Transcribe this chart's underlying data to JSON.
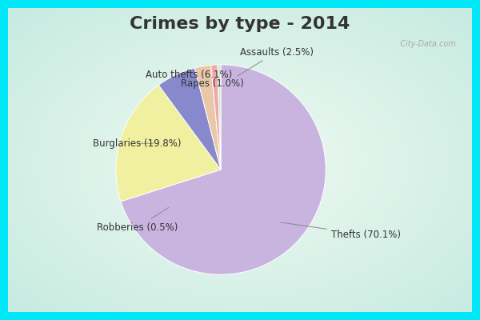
{
  "title": "Crimes by type - 2014",
  "slices": [
    {
      "label": "Thefts (70.1%)",
      "value": 70.1,
      "color": "#c9b4e0"
    },
    {
      "label": "Burglaries (19.8%)",
      "value": 19.8,
      "color": "#f0f0a0"
    },
    {
      "label": "Auto thefts (6.1%)",
      "value": 6.1,
      "color": "#8888cc"
    },
    {
      "label": "Assaults (2.5%)",
      "value": 2.5,
      "color": "#e8c8a8"
    },
    {
      "label": "Rapes (1.0%)",
      "value": 1.0,
      "color": "#f0a8a8"
    },
    {
      "label": "Robberies (0.5%)",
      "value": 0.5,
      "color": "#d0e8d0"
    }
  ],
  "border_color": "#00e8f8",
  "bg_gradient_center": "#e8f4f0",
  "bg_gradient_edge": "#c8e8e0",
  "title_color": "#333333",
  "title_fontsize": 16,
  "label_fontsize": 8.5,
  "startangle": 90,
  "border_width": 10
}
